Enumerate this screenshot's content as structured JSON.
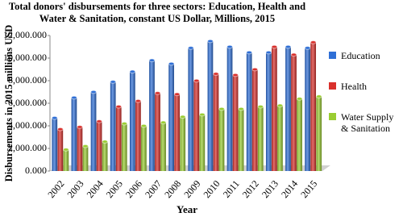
{
  "chart_data": {
    "type": "bar",
    "title": "Total donors' disbursements  for three sectors: Education, Health and Water & Sanitation, constant US Dollar, Millions,  2015",
    "y_label": "Disbursements  in 2015 millions  USD",
    "x_label": "Year",
    "categories": [
      "2002",
      "2003",
      "2004",
      "2005",
      "2006",
      "2007",
      "2008",
      "2009",
      "2010",
      "2011",
      "2012",
      "2013",
      "2014",
      "2015"
    ],
    "series": [
      {
        "name": "Education",
        "color": "#2f6fd6",
        "values": [
          4700,
          6500,
          7000,
          7900,
          8800,
          9800,
          9500,
          10900,
          11500,
          11000,
          10500,
          10500,
          11000,
          10900
        ]
      },
      {
        "name": "Health",
        "color": "#d9302c",
        "values": [
          3700,
          3900,
          4400,
          5700,
          6200,
          6900,
          6800,
          8000,
          8600,
          8500,
          9000,
          11000,
          10300,
          11400
        ]
      },
      {
        "name": "Water Supply & Sanitation",
        "color": "#9acd32",
        "values": [
          1900,
          2200,
          2600,
          4200,
          4000,
          4300,
          4800,
          5000,
          5500,
          5500,
          5700,
          5800,
          6400,
          6600
        ]
      }
    ],
    "ylim": [
      0,
      12000
    ],
    "yticks": [
      {
        "value": 0,
        "label": "0.000"
      },
      {
        "value": 2000,
        "label": "2,000.000"
      },
      {
        "value": 4000,
        "label": "4,000.000"
      },
      {
        "value": 6000,
        "label": "6,000.000"
      },
      {
        "value": 8000,
        "label": "8,000.000"
      },
      {
        "value": 10000,
        "label": "10,000.000"
      },
      {
        "value": 12000,
        "label": "12,000.000"
      }
    ]
  }
}
